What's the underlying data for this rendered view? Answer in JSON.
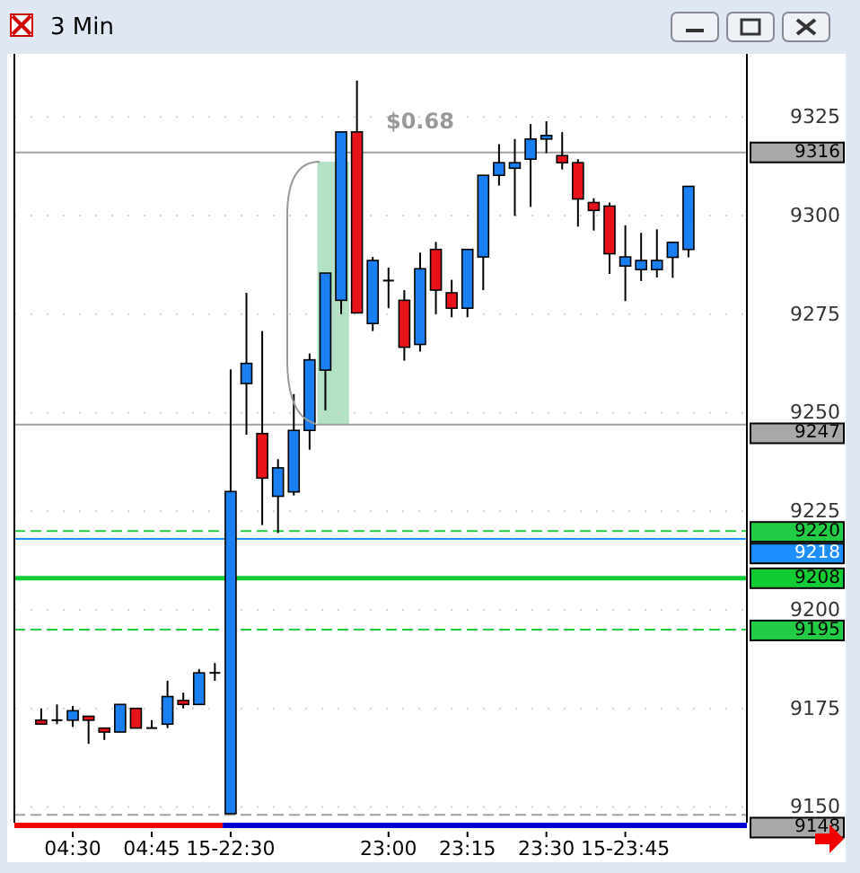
{
  "chart_data": {
    "type": "candlestick",
    "title": "3 Min",
    "categories": [
      null,
      null,
      "04:30",
      null,
      null,
      null,
      null,
      "04:45",
      null,
      null,
      null,
      null,
      "15-22:30",
      null,
      null,
      null,
      null,
      null,
      null,
      null,
      null,
      null,
      "23:00",
      null,
      null,
      null,
      null,
      "23:15",
      null,
      null,
      null,
      null,
      "23:30",
      null,
      null,
      null,
      null,
      "15-23:45",
      null,
      null,
      null,
      null
    ],
    "ohlc": [
      [
        9172,
        9175,
        9171,
        9171
      ],
      [
        9172,
        9176,
        9171,
        9172
      ],
      [
        9172,
        9175.6,
        9170.3,
        9174.4
      ],
      [
        9173,
        9173,
        9166,
        9172
      ],
      [
        9170,
        9170,
        9167,
        9169
      ],
      [
        9169,
        9176,
        9169,
        9176
      ],
      [
        9175,
        9175,
        9170,
        9170
      ],
      [
        9170,
        9172,
        9170,
        9170
      ],
      [
        9171,
        9182,
        9170,
        9178
      ],
      [
        9177,
        9179,
        9175,
        9176
      ],
      [
        9176,
        9185,
        9176,
        9184
      ],
      [
        9184,
        9186.5,
        9182,
        9184
      ],
      [
        9148.3,
        9261,
        9148.3,
        9230
      ],
      [
        9257.4,
        9280.4,
        9244.4,
        9262.5
      ],
      [
        9244.7,
        9270.7,
        9221.5,
        9233.4
      ],
      [
        9228.8,
        9238.2,
        9219.5,
        9236
      ],
      [
        9229.9,
        9254.7,
        9229,
        9245.5
      ],
      [
        9245.5,
        9265,
        9240.6,
        9263.4
      ],
      [
        9260.8,
        9285.4,
        9250.6,
        9285.4
      ],
      [
        9278.5,
        9321.2,
        9275,
        9321.2
      ],
      [
        9321.2,
        9334.2,
        9275.3,
        9275.3
      ],
      [
        9272.6,
        9289.5,
        9270.7,
        9288.6
      ],
      [
        9283.5,
        9286.8,
        9276.5,
        9283.5
      ],
      [
        9278.5,
        9281.1,
        9263.2,
        9266.6
      ],
      [
        9267.3,
        9290.6,
        9265.5,
        9286.5
      ],
      [
        9291.4,
        9293.3,
        9275,
        9281.1
      ],
      [
        9280.4,
        9283.7,
        9274.2,
        9276.5
      ],
      [
        9276.5,
        9291.4,
        9274.2,
        9291.4
      ],
      [
        9289.5,
        9310.2,
        9281.1,
        9310.2
      ],
      [
        9310.2,
        9318.1,
        9307.6,
        9313.4
      ],
      [
        9312,
        9319.4,
        9299.9,
        9313.4
      ],
      [
        9314.3,
        9323.2,
        9302.2,
        9319.4
      ],
      [
        9319.4,
        9323.9,
        9315.8,
        9320.3
      ],
      [
        9315.2,
        9321.2,
        9311.7,
        9313.4
      ],
      [
        9313.4,
        9314.3,
        9297.2,
        9304.2
      ],
      [
        9303.3,
        9304.4,
        9296.2,
        9301.3
      ],
      [
        9302.4,
        9303.3,
        9285.2,
        9290.3
      ],
      [
        9287.2,
        9297.5,
        9278.3,
        9289.5
      ],
      [
        9286.3,
        9295.6,
        9283.4,
        9288.6
      ],
      [
        9286.3,
        9296.5,
        9284.3,
        9288.6
      ],
      [
        9289.4,
        9293.2,
        9284.2,
        9293.2
      ],
      [
        9291.4,
        9307.4,
        9289.4,
        9307.4
      ]
    ],
    "colors": [
      "#e8121a",
      "#000000",
      "#1a7ff0",
      "#e8121a",
      "#e8121a",
      "#1a7ff0",
      "#e8121a",
      "#000000",
      "#1a7ff0",
      "#e8121a",
      "#1a7ff0",
      "#000000",
      "#1a7ff0",
      "#1a7ff0",
      "#e8121a",
      "#1a7ff0",
      "#1a7ff0",
      "#1a7ff0",
      "#1a7ff0",
      "#1a7ff0",
      "#e8121a",
      "#1a7ff0",
      "#000000",
      "#e8121a",
      "#1a7ff0",
      "#e8121a",
      "#e8121a",
      "#1a7ff0",
      "#1a7ff0",
      "#1a7ff0",
      "#1a7ff0",
      "#1a7ff0",
      "#1a7ff0",
      "#e8121a",
      "#e8121a",
      "#e8121a",
      "#e8121a",
      "#1a7ff0",
      "#1a7ff0",
      "#1a7ff0",
      "#1a7ff0",
      "#1a7ff0"
    ],
    "ylim": [
      9146,
      9341
    ],
    "yticks": [
      9150,
      9175,
      9200,
      9225,
      9250,
      9275,
      9300,
      9325
    ],
    "grid": true,
    "ref_lines": [
      {
        "axis": "y",
        "value": 9220,
        "label": "9220",
        "color": "#22cc44",
        "line_style": "dashed"
      },
      {
        "axis": "y",
        "value": 9218,
        "label": "9218",
        "color": "#1e8fff",
        "line_style": "solid"
      },
      {
        "axis": "y",
        "value": 9208,
        "label": "9208",
        "color": "#11cc33",
        "line_style": "solid"
      },
      {
        "axis": "y",
        "value": 9195,
        "label": "9195",
        "color": "#22cc44",
        "line_style": "dashed"
      },
      {
        "axis": "y",
        "value": 9148,
        "label": "9148",
        "color": "#a0a0a0",
        "line_style": "dashed"
      },
      {
        "axis": "y",
        "value": 9316,
        "label": "9316",
        "color": "#a0a0a0",
        "line_style": "solid"
      },
      {
        "axis": "y",
        "value": 9247,
        "label": "9247",
        "color": "#a0a0a0",
        "line_style": "solid"
      }
    ],
    "annotations": [
      "$0.68"
    ]
  }
}
